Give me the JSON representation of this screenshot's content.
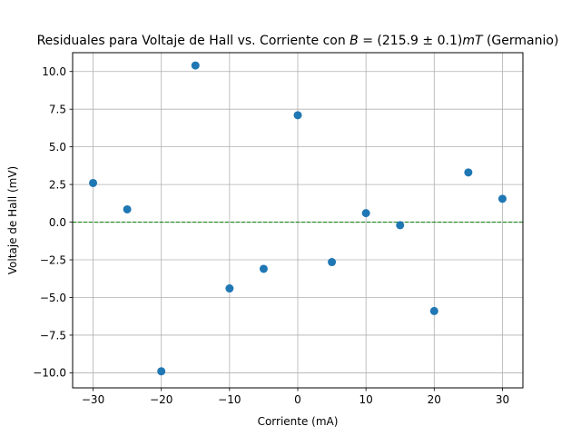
{
  "chart_data": {
    "type": "scatter",
    "title": {
      "prefix": "Residuales para Voltaje de Hall vs. Corriente con ",
      "math_var": "B",
      "math_eq": " = (215.9 ± 0.1)",
      "math_unit": "mT",
      "suffix": " (Germanio)"
    },
    "xlabel": "Corriente (mA)",
    "ylabel": "Voltaje de Hall (mV)",
    "xlim": [
      -33,
      33
    ],
    "ylim": [
      -11,
      11.25
    ],
    "xticks": [
      -30,
      -20,
      -10,
      0,
      10,
      20,
      30
    ],
    "xtick_labels": [
      "−30",
      "−20",
      "−10",
      "0",
      "10",
      "20",
      "30"
    ],
    "yticks": [
      -10,
      -7.5,
      -5,
      -2.5,
      0,
      2.5,
      5,
      7.5,
      10
    ],
    "ytick_labels": [
      "−10.0",
      "−7.5",
      "−5.0",
      "−2.5",
      "0.0",
      "2.5",
      "5.0",
      "7.5",
      "10.0"
    ],
    "grid": true,
    "reference_line": {
      "y": 0,
      "style": "dashed",
      "color": "#008000"
    },
    "marker_color": "#1f77b4",
    "points": [
      {
        "x": -30,
        "y": 2.6
      },
      {
        "x": -25,
        "y": 0.85
      },
      {
        "x": -20,
        "y": -9.9
      },
      {
        "x": -15,
        "y": 10.4
      },
      {
        "x": -10,
        "y": -4.4
      },
      {
        "x": -5,
        "y": -3.1
      },
      {
        "x": 0,
        "y": 7.1
      },
      {
        "x": 5,
        "y": -2.65
      },
      {
        "x": 10,
        "y": 0.6
      },
      {
        "x": 15,
        "y": -0.2
      },
      {
        "x": 20,
        "y": -5.9
      },
      {
        "x": 25,
        "y": 3.3
      },
      {
        "x": 30,
        "y": 1.55
      }
    ]
  }
}
